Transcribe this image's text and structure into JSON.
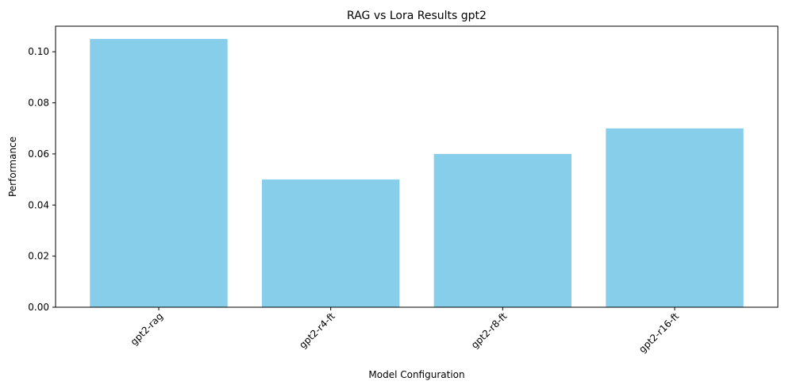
{
  "chart_data": {
    "type": "bar",
    "title": "RAG vs Lora Results gpt2",
    "xlabel": "Model Configuration",
    "ylabel": "Performance",
    "categories": [
      "gpt2-rag",
      "gpt2-r4-ft",
      "gpt2-r8-ft",
      "gpt2-r16-ft"
    ],
    "values": [
      0.105,
      0.05,
      0.06,
      0.07
    ],
    "ylim": [
      0,
      0.11
    ],
    "yticks": [
      "0.00",
      "0.02",
      "0.04",
      "0.06",
      "0.08",
      "0.10"
    ],
    "bar_color": "#87ceeb",
    "grid": false,
    "legend": "none",
    "xtick_rotation": 45
  }
}
